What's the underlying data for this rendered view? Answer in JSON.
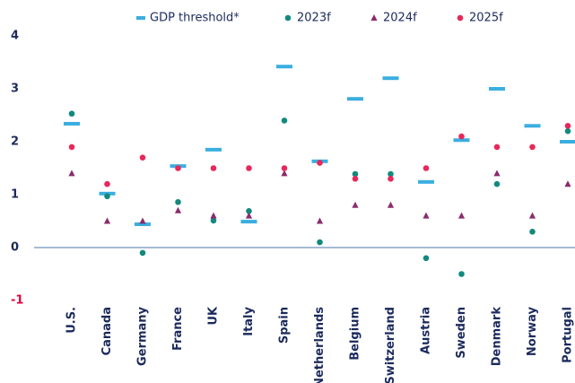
{
  "chart_data": {
    "type": "scatter",
    "categories": [
      "U.S.",
      "Canada",
      "Germany",
      "France",
      "UK",
      "Italy",
      "Spain",
      "Netherlands",
      "Belgium",
      "Switzerland",
      "Austria",
      "Sweden",
      "Denmark",
      "Norway",
      "Portugal"
    ],
    "series": [
      {
        "name": "GDP threshold*",
        "color": "#3aaee0",
        "marker": "dash",
        "values": [
          2.34,
          1.02,
          0.44,
          1.54,
          1.85,
          0.49,
          3.42,
          1.63,
          2.81,
          3.2,
          1.24,
          2.03,
          3.0,
          2.3,
          2.0
        ]
      },
      {
        "name": "2023f",
        "color": "#12897d",
        "marker": "circle",
        "values": [
          2.53,
          0.97,
          -0.1,
          0.86,
          0.51,
          0.69,
          2.4,
          0.1,
          1.39,
          1.39,
          -0.2,
          -0.5,
          1.2,
          0.3,
          2.2
        ]
      },
      {
        "name": "2024f",
        "color": "#8a2c6c",
        "marker": "triangle",
        "values": [
          1.4,
          0.5,
          0.5,
          0.7,
          0.6,
          0.6,
          1.4,
          0.5,
          0.8,
          0.8,
          0.6,
          0.6,
          1.4,
          0.6,
          1.2
        ]
      },
      {
        "name": "2025f",
        "color": "#e8285a",
        "marker": "circle",
        "values": [
          1.9,
          1.2,
          1.7,
          1.5,
          1.5,
          1.5,
          1.5,
          1.6,
          1.3,
          1.3,
          1.5,
          2.1,
          1.9,
          1.9,
          2.3
        ]
      }
    ],
    "ylim": [
      -1,
      4
    ],
    "yticks": [
      -1,
      0,
      1,
      2,
      3,
      4
    ],
    "negative_tick_color": "#e4003a",
    "zero_line_color": "#4a7aa8"
  }
}
